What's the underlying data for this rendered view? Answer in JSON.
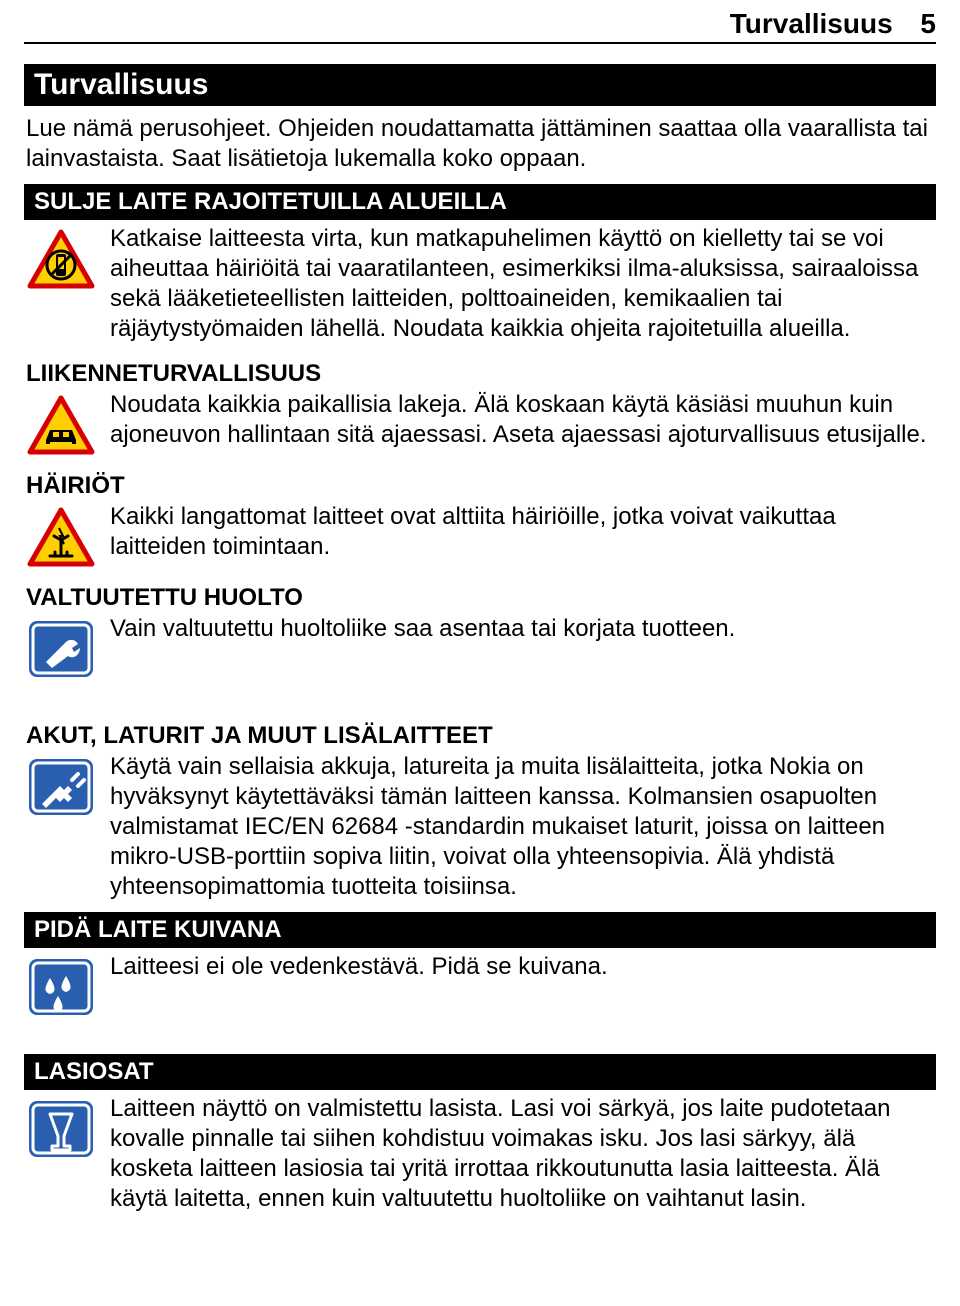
{
  "page": {
    "running_header": "Turvallisuus",
    "page_number": "5"
  },
  "chapter_title": "Turvallisuus",
  "intro": "Lue nämä perusohjeet. Ohjeiden noudattamatta jättäminen saattaa olla vaarallista tai lainvastaista. Saat lisätietoja lukemalla koko oppaan.",
  "colors": {
    "warning_yellow": "#ffcf00",
    "warning_border": "#d60000",
    "info_blue": "#2a5fb0",
    "white": "#ffffff",
    "black": "#000000"
  },
  "sections": [
    {
      "title": "SULJE LAITE RAJOITETUILLA ALUEILLA",
      "title_style": "blackbar",
      "icon": "warning-nophone",
      "text": "Katkaise laitteesta virta, kun matkapuhelimen käyttö on kielletty tai se voi aiheuttaa häiriöitä tai vaaratilanteen, esimerkiksi ilma-aluksissa, sairaaloissa sekä lääketieteellisten laitteiden, polttoaineiden, kemikaalien tai räjäytystyömaiden lähellä. Noudata kaikkia ohjeita rajoitetuilla alueilla."
    },
    {
      "title": "LIIKENNETURVALLISUUS",
      "title_style": "plain",
      "icon": "warning-car",
      "text": "Noudata kaikkia paikallisia lakeja. Älä koskaan käytä käsiäsi muuhun kuin ajoneuvon hallintaan sitä ajaessasi. Aseta ajaessasi ajoturvallisuus etusijalle."
    },
    {
      "title": "HÄIRIÖT",
      "title_style": "plain",
      "icon": "warning-interference",
      "text": "Kaikki langattomat laitteet ovat alttiita häiriöille, jotka voivat vaikuttaa laitteiden toimintaan."
    },
    {
      "title": "VALTUUTETTU HUOLTO",
      "title_style": "plain",
      "icon": "info-wrench",
      "text": "Vain valtuutettu huoltoliike saa asentaa tai korjata tuotteen.",
      "spacer_after": true
    },
    {
      "title": "AKUT, LATURIT JA MUUT LISÄLAITTEET",
      "title_style": "plain",
      "icon": "info-plug",
      "text": "Käytä vain sellaisia akkuja, latureita ja muita lisälaitteita, jotka Nokia on hyväksynyt käytettäväksi tämän laitteen kanssa. Kolmansien osapuolten valmistamat IEC/EN 62684 -standardin mukaiset laturit, joissa on laitteen mikro-USB-porttiin sopiva liitin, voivat olla yhteensopivia. Älä yhdistä yhteensopimattomia tuotteita toisiinsa."
    },
    {
      "title": "PIDÄ LAITE KUIVANA",
      "title_style": "blackbar",
      "icon": "info-water",
      "text": "Laitteesi ei ole vedenkestävä. Pidä se kuivana.",
      "spacer_after": true
    },
    {
      "title": "LASIOSAT",
      "title_style": "blackbar",
      "icon": "info-glass",
      "text": "Laitteen näyttö on valmistettu lasista. Lasi voi särkyä, jos laite pudotetaan kovalle pinnalle tai siihen kohdistuu voimakas isku. Jos lasi särkyy, älä kosketa laitteen lasiosia tai yritä irrottaa rikkoutunutta lasia laitteesta. Älä käytä laitetta, ennen kuin valtuutettu huoltoliike on vaihtanut lasin."
    }
  ]
}
